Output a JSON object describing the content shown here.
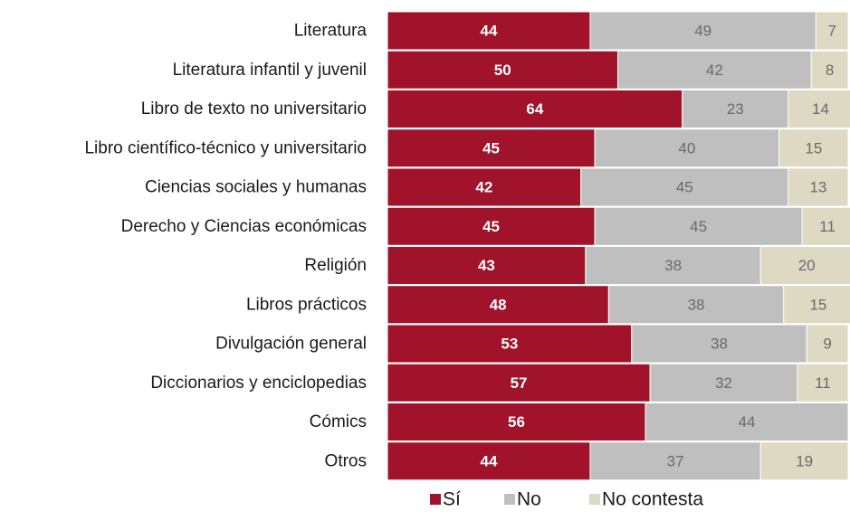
{
  "chart_data": {
    "type": "bar",
    "orientation": "horizontal",
    "stacked": true,
    "categories": [
      "Literatura",
      "Literatura infantil y juvenil",
      "Libro de texto no universitario",
      "Libro científico-técnico y universitario",
      "Ciencias sociales y humanas",
      "Derecho y Ciencias económicas",
      "Religión",
      "Libros prácticos",
      "Divulgación general",
      "Diccionarios y enciclopedias",
      "Cómics",
      "Otros"
    ],
    "series": [
      {
        "name": "Sí",
        "color": "#a0132a",
        "values": [
          44,
          50,
          64,
          45,
          42,
          45,
          43,
          48,
          53,
          57,
          56,
          44
        ]
      },
      {
        "name": "No",
        "color": "#bfbfbf",
        "values": [
          49,
          42,
          23,
          40,
          45,
          45,
          38,
          38,
          38,
          32,
          44,
          37
        ]
      },
      {
        "name": "No contesta",
        "color": "#ddd9c3",
        "values": [
          7,
          8,
          14,
          15,
          13,
          11,
          20,
          15,
          9,
          11,
          null,
          19
        ]
      }
    ],
    "xlim": [
      0,
      100
    ],
    "legend_position": "bottom",
    "grid": false
  }
}
